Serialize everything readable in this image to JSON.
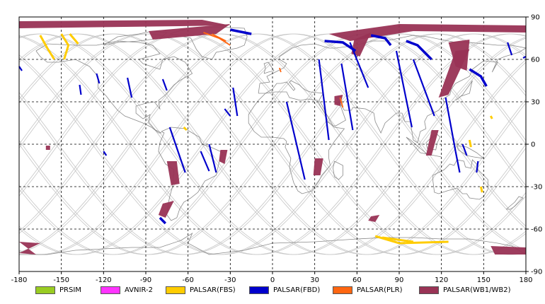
{
  "chart_data": {
    "type": "map",
    "projection": "equirectangular",
    "xlim": [
      -180,
      180
    ],
    "ylim": [
      -90,
      90
    ],
    "x_ticks": [
      -180,
      -150,
      -120,
      -90,
      -60,
      -30,
      0,
      30,
      60,
      90,
      120,
      150,
      180
    ],
    "y_ticks": [
      90,
      60,
      30,
      0,
      -30,
      -60,
      -90
    ],
    "grid": true,
    "legend": [
      {
        "name": "PRSIM",
        "color": "#99cc22"
      },
      {
        "name": "AVNIR-2",
        "color": "#ff33ff"
      },
      {
        "name": "PALSAR(FBS)",
        "color": "#ffcc00"
      },
      {
        "name": "PALSAR(FBD)",
        "color": "#0000cc"
      },
      {
        "name": "PALSAR(PLR)",
        "color": "#ff6611"
      },
      {
        "name": "PALSAR(WB1/WB2)",
        "color": "#993355"
      }
    ],
    "wb_swaths": [
      [
        [
          -180,
          87
        ],
        [
          -50,
          88
        ],
        [
          -30,
          84
        ],
        [
          -180,
          82
        ]
      ],
      [
        [
          -88,
          80
        ],
        [
          -30,
          85
        ],
        [
          -40,
          78
        ],
        [
          -85,
          74
        ]
      ],
      [
        [
          40,
          78
        ],
        [
          90,
          85
        ],
        [
          180,
          84
        ],
        [
          180,
          79
        ],
        [
          100,
          80
        ],
        [
          55,
          73
        ]
      ],
      [
        [
          58,
          74
        ],
        [
          70,
          79
        ],
        [
          62,
          62
        ],
        [
          56,
          64
        ]
      ],
      [
        [
          125,
          72
        ],
        [
          140,
          74
        ],
        [
          138,
          52
        ],
        [
          130,
          55
        ]
      ],
      [
        [
          130,
          66
        ],
        [
          140,
          67
        ],
        [
          125,
          35
        ],
        [
          118,
          33
        ]
      ],
      [
        [
          44,
          34
        ],
        [
          50,
          35
        ],
        [
          48,
          27
        ],
        [
          44,
          28
        ]
      ],
      [
        [
          113,
          10
        ],
        [
          118,
          10
        ],
        [
          113,
          -8
        ],
        [
          109,
          -8
        ]
      ],
      [
        [
          -75,
          -12
        ],
        [
          -68,
          -12
        ],
        [
          -66,
          -28
        ],
        [
          -72,
          -29
        ]
      ],
      [
        [
          -37,
          -4
        ],
        [
          -32,
          -4
        ],
        [
          -34,
          -14
        ],
        [
          -38,
          -12
        ]
      ],
      [
        [
          30,
          -10
        ],
        [
          36,
          -10
        ],
        [
          34,
          -22
        ],
        [
          29,
          -22
        ]
      ],
      [
        [
          -78,
          -42
        ],
        [
          -70,
          -40
        ],
        [
          -76,
          -52
        ],
        [
          -81,
          -50
        ]
      ],
      [
        [
          70,
          -51
        ],
        [
          76,
          -50
        ],
        [
          73,
          -55
        ],
        [
          68,
          -54
        ]
      ],
      [
        [
          -180,
          -69
        ],
        [
          -165,
          -70
        ],
        [
          -180,
          -77
        ],
        [
          -168,
          -78
        ]
      ],
      [
        [
          155,
          -72
        ],
        [
          180,
          -73
        ],
        [
          180,
          -78
        ],
        [
          158,
          -78
        ]
      ],
      [
        [
          -161,
          -1
        ],
        [
          -158,
          -1
        ],
        [
          -158,
          -4
        ],
        [
          -161,
          -4
        ]
      ]
    ],
    "fbd_strips": [
      [
        [
          -125,
          50
        ],
        [
          -123,
          43
        ]
      ],
      [
        [
          -103,
          47
        ],
        [
          -100,
          33
        ]
      ],
      [
        [
          -78,
          46
        ],
        [
          -75,
          38
        ]
      ],
      [
        [
          -73,
          12
        ],
        [
          -62,
          -20
        ]
      ],
      [
        [
          -45,
          0
        ],
        [
          -40,
          -20
        ]
      ],
      [
        [
          -51,
          -5
        ],
        [
          -45,
          -19
        ]
      ],
      [
        [
          -28,
          40
        ],
        [
          -25,
          20
        ]
      ],
      [
        [
          10,
          30
        ],
        [
          23,
          -25
        ]
      ],
      [
        [
          33,
          60
        ],
        [
          40,
          3
        ]
      ],
      [
        [
          49,
          57
        ],
        [
          57,
          10
        ]
      ],
      [
        [
          88,
          66
        ],
        [
          99,
          12
        ]
      ],
      [
        [
          55,
          72
        ],
        [
          68,
          40
        ]
      ],
      [
        [
          100,
          60
        ],
        [
          115,
          20
        ]
      ],
      [
        [
          123,
          33
        ],
        [
          130,
          -5
        ]
      ],
      [
        [
          130,
          -5
        ],
        [
          133,
          -20
        ]
      ],
      [
        [
          146,
          -12
        ],
        [
          145,
          -20
        ]
      ],
      [
        [
          135,
          0
        ],
        [
          138,
          -8
        ]
      ],
      [
        [
          -34,
          25
        ],
        [
          -30,
          20
        ]
      ],
      [
        [
          -180,
          55
        ],
        [
          -178,
          52
        ]
      ],
      [
        [
          -137,
          42
        ],
        [
          -136,
          35
        ]
      ],
      [
        [
          167,
          72
        ],
        [
          170,
          63
        ]
      ],
      [
        [
          180,
          62
        ],
        [
          178,
          61
        ]
      ],
      [
        [
          -120,
          -5
        ],
        [
          -118,
          -8
        ]
      ]
    ],
    "fbd_arcs": [
      [
        [
          37,
          73
        ],
        [
          50,
          72
        ],
        [
          59,
          66
        ]
      ],
      [
        [
          70,
          77
        ],
        [
          80,
          75
        ],
        [
          84,
          70
        ]
      ],
      [
        [
          95,
          73
        ],
        [
          103,
          70
        ],
        [
          113,
          60
        ]
      ],
      [
        [
          -80,
          -52
        ],
        [
          -76,
          -56
        ]
      ],
      [
        [
          -30,
          81
        ],
        [
          -20,
          79
        ],
        [
          -15,
          78
        ]
      ],
      [
        [
          140,
          53
        ],
        [
          148,
          48
        ],
        [
          152,
          41
        ]
      ]
    ],
    "fbs_paths": [
      [
        [
          -165,
          77
        ],
        [
          -160,
          68
        ],
        [
          -155,
          60
        ]
      ],
      [
        [
          -150,
          78
        ],
        [
          -145,
          70
        ],
        [
          -148,
          60
        ]
      ],
      [
        [
          -144,
          78
        ],
        [
          -138,
          71
        ]
      ],
      [
        [
          -63,
          12
        ],
        [
          -61,
          10
        ]
      ],
      [
        [
          73,
          -65
        ],
        [
          90,
          -70
        ],
        [
          125,
          -69
        ]
      ],
      [
        [
          78,
          -66
        ],
        [
          100,
          -69
        ]
      ],
      [
        [
          140,
          3
        ],
        [
          141,
          -2
        ]
      ],
      [
        [
          148,
          -30
        ],
        [
          149,
          -34
        ]
      ],
      [
        [
          155,
          20
        ],
        [
          156,
          18
        ]
      ]
    ],
    "plr_paths": [
      [
        [
          -49,
          79
        ],
        [
          -38,
          75
        ],
        [
          -30,
          70
        ]
      ],
      [
        [
          -43,
          78
        ],
        [
          -33,
          73
        ]
      ],
      [
        [
          48,
          33
        ],
        [
          50,
          26
        ]
      ],
      [
        [
          5,
          54
        ],
        [
          6,
          51
        ]
      ]
    ]
  }
}
